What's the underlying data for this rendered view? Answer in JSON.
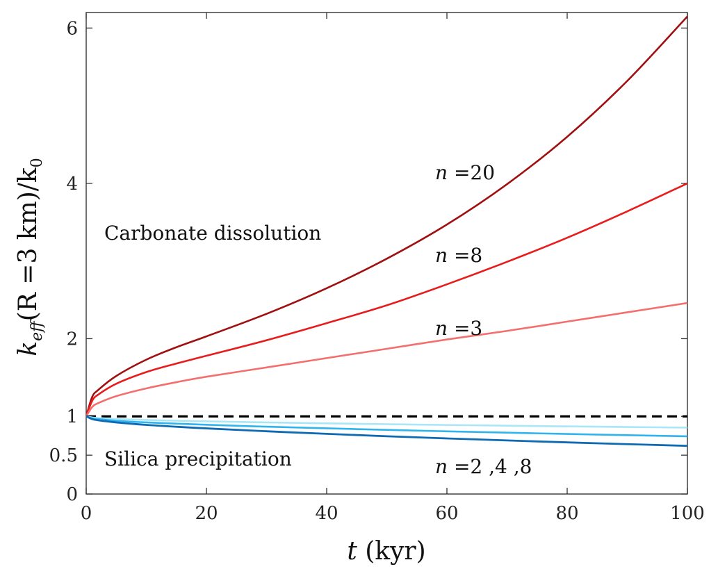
{
  "chart_data": {
    "type": "line",
    "title": "",
    "xlabel": {
      "var": "t",
      "rest": " (kyr)"
    },
    "ylabel": {
      "k": "k",
      "sub": "eff",
      "mid": "(R =3 km)/k",
      "sub0": "0"
    },
    "xlim": [
      0,
      100
    ],
    "ylim": [
      0,
      6.2
    ],
    "xticks": [
      0,
      20,
      40,
      60,
      80,
      100
    ],
    "yticks": [
      0,
      0.5,
      1,
      2,
      4,
      6
    ],
    "xtick_labels": [
      "0",
      "20",
      "40",
      "60",
      "80",
      "100"
    ],
    "ytick_labels": [
      "0",
      "0.5",
      "1",
      "2",
      "4",
      "6"
    ],
    "grid": false,
    "x": [
      0,
      1,
      2,
      5,
      10,
      15,
      20,
      30,
      40,
      50,
      60,
      70,
      80,
      90,
      100
    ],
    "series": [
      {
        "name": "n =20",
        "color": "#a01010",
        "width": 2.6,
        "values": [
          1.0,
          1.25,
          1.34,
          1.52,
          1.73,
          1.89,
          2.03,
          2.32,
          2.65,
          3.03,
          3.47,
          3.99,
          4.6,
          5.32,
          6.15
        ]
      },
      {
        "name": "n =8",
        "color": "#e81c1c",
        "width": 2.6,
        "values": [
          1.0,
          1.2,
          1.28,
          1.42,
          1.57,
          1.68,
          1.78,
          1.98,
          2.2,
          2.43,
          2.7,
          2.99,
          3.3,
          3.64,
          4.0
        ]
      },
      {
        "name": "n =3",
        "color": "#f56e6e",
        "width": 2.6,
        "values": [
          1.0,
          1.12,
          1.17,
          1.26,
          1.36,
          1.44,
          1.51,
          1.63,
          1.75,
          1.87,
          1.99,
          2.1,
          2.22,
          2.34,
          2.46
        ]
      },
      {
        "name": "baseline",
        "color": "#000000",
        "width": 3.2,
        "dashed": true,
        "values": [
          1.0,
          1.0,
          1.0,
          1.0,
          1.0,
          1.0,
          1.0,
          1.0,
          1.0,
          1.0,
          1.0,
          1.0,
          1.0,
          1.0,
          1.0
        ]
      },
      {
        "name": "n =2",
        "color": "#a8e6f8",
        "width": 2.6,
        "values": [
          1.0,
          0.985,
          0.978,
          0.966,
          0.953,
          0.944,
          0.936,
          0.922,
          0.91,
          0.899,
          0.889,
          0.88,
          0.871,
          0.863,
          0.855
        ]
      },
      {
        "name": "n =4",
        "color": "#30b4ee",
        "width": 2.6,
        "values": [
          1.0,
          0.975,
          0.965,
          0.944,
          0.922,
          0.906,
          0.892,
          0.867,
          0.846,
          0.826,
          0.807,
          0.79,
          0.773,
          0.758,
          0.743
        ]
      },
      {
        "name": "n =8",
        "color": "#0e6ab2",
        "width": 2.8,
        "values": [
          1.0,
          0.965,
          0.95,
          0.922,
          0.89,
          0.866,
          0.845,
          0.808,
          0.775,
          0.744,
          0.716,
          0.69,
          0.665,
          0.642,
          0.62
        ]
      }
    ],
    "annotations": {
      "carbonate": "Carbonate dissolution",
      "silica": "Silica precipitation",
      "n20": {
        "var": "n",
        "text": " =20"
      },
      "n8": {
        "var": "n",
        "text": " =8"
      },
      "n3": {
        "var": "n",
        "text": " =3"
      },
      "nblue": {
        "var": "n",
        "text": " =2 ,4 ,8"
      }
    }
  }
}
